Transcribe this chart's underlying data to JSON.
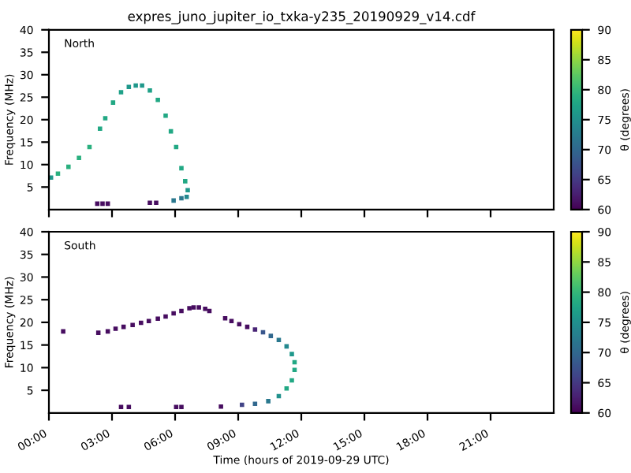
{
  "chart_data": [
    {
      "type": "scatter",
      "title": "expres_juno_jupiter_io_txka-y235_20190929_v14.cdf",
      "ylabel": "Frequency (MHz)",
      "clabel": "θ (degrees)",
      "annotations": [
        "North"
      ],
      "marker": "square",
      "tick_labels": "y",
      "xlim": [
        0,
        24
      ],
      "xticks": [
        {
          "value": 0,
          "label": null
        },
        {
          "value": 3,
          "label": null
        },
        {
          "value": 6,
          "label": null
        },
        {
          "value": 9,
          "label": null
        },
        {
          "value": 12,
          "label": null
        },
        {
          "value": 15,
          "label": null
        },
        {
          "value": 18,
          "label": null
        },
        {
          "value": 21,
          "label": null
        }
      ],
      "ylim": [
        0,
        40
      ],
      "yticks": [
        5,
        10,
        15,
        20,
        25,
        30,
        35,
        40
      ],
      "clim": [
        60,
        90
      ],
      "cticks": [
        60,
        65,
        70,
        75,
        80,
        85,
        90
      ],
      "series": [
        {
          "x": [
            0.1,
            0.43,
            0.93,
            1.43,
            1.93,
            2.43,
            2.68,
            3.05,
            3.43,
            3.8,
            4.13,
            4.43,
            4.8,
            5.18,
            5.55,
            5.8,
            6.05,
            6.3,
            6.48,
            6.6,
            6.55,
            6.3,
            5.93,
            2.3,
            2.55,
            2.8,
            4.8,
            5.1
          ],
          "values": [
            7.1,
            8,
            9.5,
            11.5,
            13.9,
            18,
            20.3,
            23.8,
            26.1,
            27.3,
            27.6,
            27.6,
            26.5,
            24.4,
            20.9,
            17.4,
            13.9,
            9.2,
            6.3,
            4.3,
            2.8,
            2.5,
            2,
            1.3,
            1.3,
            1.3,
            1.5,
            1.5
          ],
          "cvalues": [
            76,
            79,
            79,
            79,
            79,
            78,
            78,
            78,
            77,
            76,
            76,
            76,
            77,
            78,
            78,
            78,
            78,
            78,
            78,
            76,
            74,
            72,
            72,
            61,
            61,
            61,
            61,
            61
          ]
        }
      ]
    },
    {
      "type": "scatter",
      "xlabel": "Time (hours of 2019-09-29 UTC)",
      "ylabel": "Frequency (MHz)",
      "clabel": "θ (degrees)",
      "annotations": [
        "South"
      ],
      "marker": "square",
      "xlim": [
        0,
        24
      ],
      "xticks": [
        {
          "value": 0,
          "label": "00:00"
        },
        {
          "value": 3,
          "label": "03:00"
        },
        {
          "value": 6,
          "label": "06:00"
        },
        {
          "value": 9,
          "label": "09:00"
        },
        {
          "value": 12,
          "label": "12:00"
        },
        {
          "value": 15,
          "label": "15:00"
        },
        {
          "value": 18,
          "label": "18:00"
        },
        {
          "value": 21,
          "label": "21:00"
        }
      ],
      "ylim": [
        0,
        40
      ],
      "yticks": [
        5,
        10,
        15,
        20,
        25,
        30,
        35,
        40
      ],
      "clim": [
        60,
        90
      ],
      "cticks": [
        60,
        65,
        70,
        75,
        80,
        85,
        90
      ],
      "series": [
        {
          "x": [
            0.68,
            2.35,
            2.8,
            3.17,
            3.55,
            3.98,
            4.38,
            4.75,
            5.18,
            5.55,
            5.93,
            6.3,
            6.68,
            6.88,
            7.13,
            7.43,
            7.63,
            8.38,
            8.68,
            9.05,
            9.43,
            9.8,
            10.18,
            10.55,
            10.93,
            11.3,
            11.55,
            11.68,
            11.68,
            11.55,
            11.3,
            10.93,
            10.43,
            9.8,
            9.18,
            8.18,
            6.3,
            6.05,
            3.43,
            3.8
          ],
          "values": [
            18,
            17.7,
            18,
            18.6,
            19,
            19.4,
            19.9,
            20.3,
            20.8,
            21.3,
            22,
            22.5,
            23.1,
            23.3,
            23.3,
            23,
            22.5,
            20.9,
            20.3,
            19.6,
            19,
            18.4,
            17.8,
            17,
            16.1,
            14.7,
            13,
            11.2,
            9.5,
            7.2,
            5.4,
            3.7,
            2.6,
            2,
            1.8,
            1.4,
            1.3,
            1.3,
            1.3,
            1.3
          ],
          "cvalues": [
            61,
            61,
            61,
            61,
            61,
            61,
            61,
            61,
            61,
            61,
            61,
            61,
            61,
            61,
            61,
            61,
            61,
            61,
            61,
            61,
            61,
            63,
            68,
            70,
            72,
            74,
            76,
            78,
            78,
            78,
            78,
            75,
            72,
            70,
            66,
            61,
            61,
            61,
            61,
            61
          ]
        }
      ]
    }
  ]
}
